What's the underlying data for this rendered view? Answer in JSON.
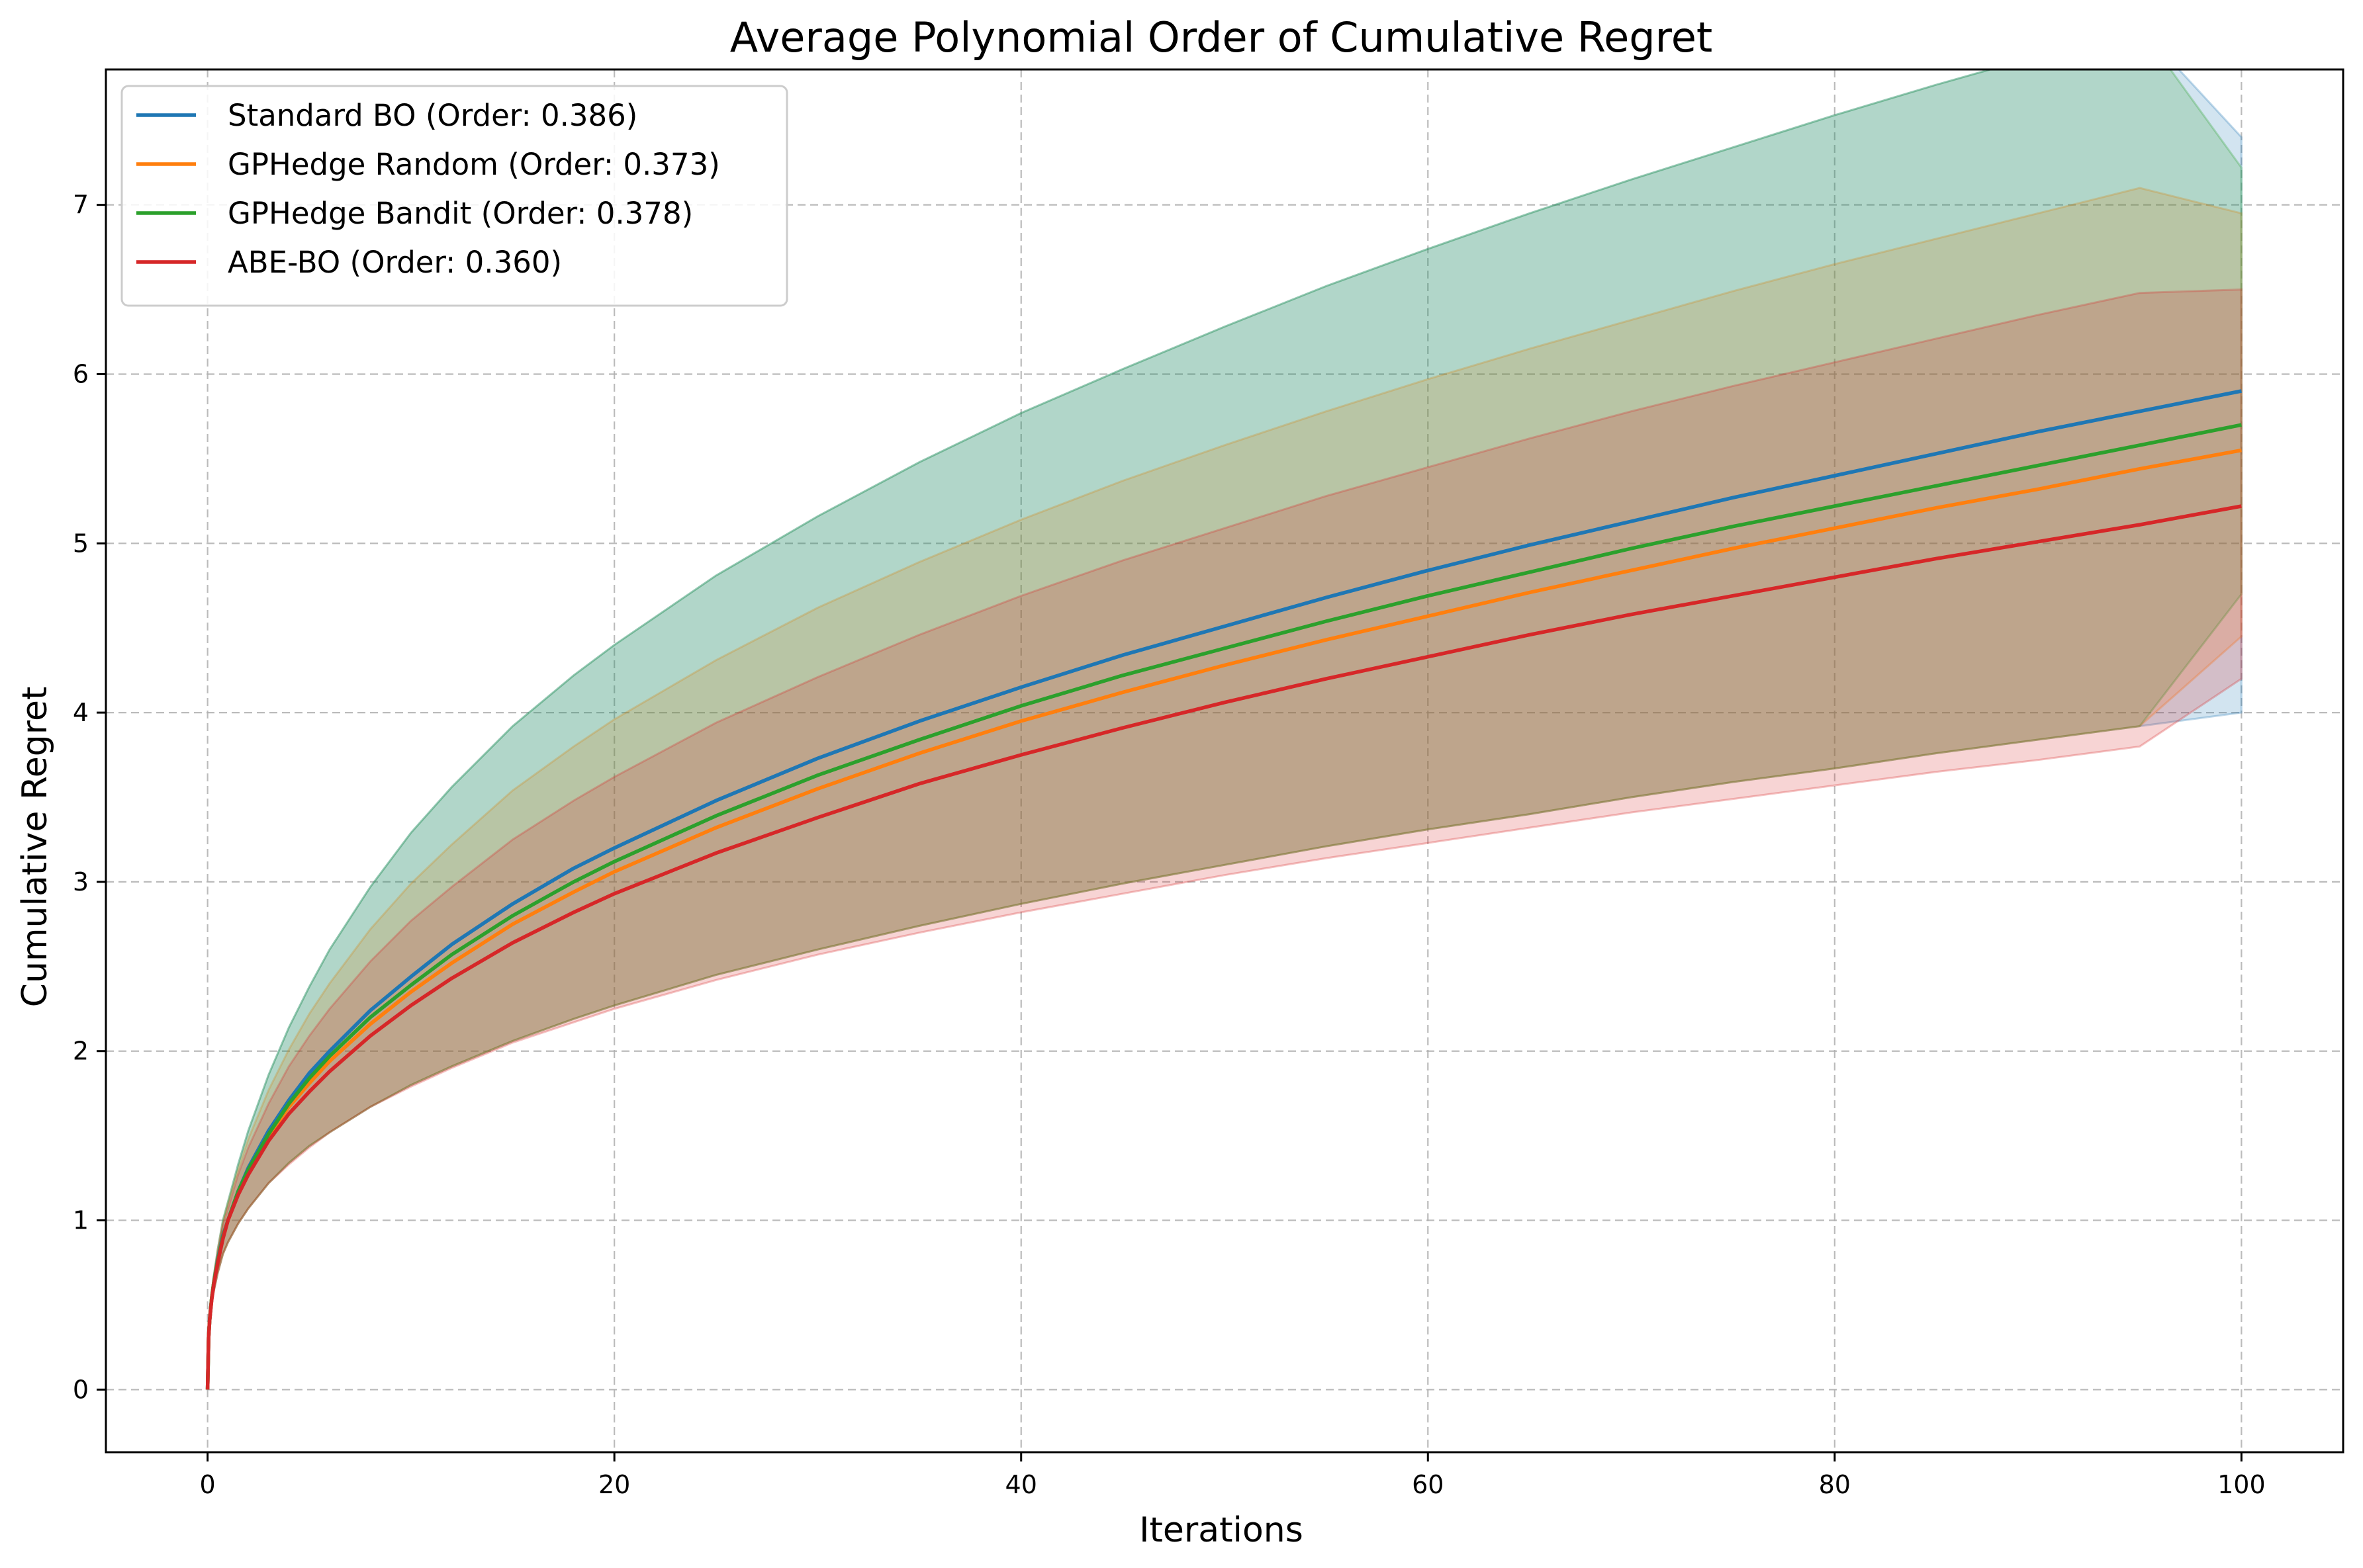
{
  "chart_data": {
    "type": "line",
    "title": "Average Polynomial Order of Cumulative Regret",
    "xlabel": "Iterations",
    "ylabel": "Cumulative Regret",
    "xlim": [
      -5,
      105
    ],
    "ylim": [
      -0.37,
      7.8
    ],
    "xticks": [
      0,
      20,
      40,
      60,
      80,
      100
    ],
    "yticks": [
      0,
      1,
      2,
      3,
      4,
      5,
      6,
      7
    ],
    "grid": true,
    "legend_position": "upper-left",
    "x": [
      0,
      0.05,
      0.1,
      0.2,
      0.3,
      0.5,
      0.75,
      1,
      1.5,
      2,
      3,
      4,
      5,
      6,
      8,
      10,
      12,
      15,
      18,
      20,
      25,
      30,
      35,
      40,
      45,
      50,
      55,
      60,
      65,
      70,
      75,
      80,
      85,
      90,
      95,
      100
    ],
    "series": [
      {
        "name": "Standard BO (Order: 0.386)",
        "color": "#1f77b4",
        "values": [
          0,
          0.31,
          0.41,
          0.54,
          0.63,
          0.77,
          0.91,
          1.0,
          1.17,
          1.31,
          1.53,
          1.71,
          1.87,
          2.0,
          2.24,
          2.44,
          2.63,
          2.87,
          3.08,
          3.2,
          3.48,
          3.73,
          3.95,
          4.15,
          4.34,
          4.51,
          4.68,
          4.84,
          4.99,
          5.13,
          5.27,
          5.4,
          5.53,
          5.66,
          5.78,
          5.9
        ],
        "band_lower": [
          0,
          0.3,
          0.39,
          0.51,
          0.58,
          0.69,
          0.8,
          0.87,
          0.98,
          1.07,
          1.22,
          1.34,
          1.44,
          1.52,
          1.67,
          1.8,
          1.91,
          2.06,
          2.19,
          2.27,
          2.45,
          2.6,
          2.74,
          2.87,
          2.99,
          3.1,
          3.21,
          3.31,
          3.4,
          3.5,
          3.59,
          3.67,
          3.76,
          3.84,
          3.92,
          4.0
        ],
        "band_upper": [
          0,
          0.32,
          0.43,
          0.57,
          0.67,
          0.83,
          1.0,
          1.11,
          1.33,
          1.53,
          1.86,
          2.14,
          2.38,
          2.6,
          2.97,
          3.29,
          3.56,
          3.92,
          4.22,
          4.4,
          4.81,
          5.16,
          5.48,
          5.77,
          6.03,
          6.28,
          6.52,
          6.74,
          6.95,
          7.15,
          7.34,
          7.53,
          7.71,
          7.88,
          8.05,
          7.4
        ]
      },
      {
        "name": "GPHedge Random (Order: 0.373)",
        "color": "#ff7f0e",
        "values": [
          0,
          0.31,
          0.41,
          0.54,
          0.63,
          0.76,
          0.9,
          1.0,
          1.16,
          1.29,
          1.5,
          1.67,
          1.81,
          1.94,
          2.16,
          2.35,
          2.52,
          2.75,
          2.94,
          3.06,
          3.32,
          3.55,
          3.76,
          3.95,
          4.12,
          4.28,
          4.43,
          4.57,
          4.71,
          4.84,
          4.97,
          5.09,
          5.21,
          5.32,
          5.44,
          5.55
        ],
        "band_lower": [
          0,
          0.3,
          0.39,
          0.51,
          0.58,
          0.69,
          0.8,
          0.87,
          0.98,
          1.07,
          1.22,
          1.34,
          1.44,
          1.52,
          1.67,
          1.8,
          1.91,
          2.06,
          2.19,
          2.27,
          2.45,
          2.6,
          2.74,
          2.87,
          2.99,
          3.1,
          3.21,
          3.31,
          3.4,
          3.5,
          3.59,
          3.67,
          3.76,
          3.84,
          3.92,
          4.45
        ],
        "band_upper": [
          0,
          0.32,
          0.43,
          0.57,
          0.67,
          0.83,
          0.99,
          1.1,
          1.3,
          1.48,
          1.77,
          2.01,
          2.22,
          2.4,
          2.72,
          2.99,
          3.22,
          3.54,
          3.8,
          3.96,
          4.31,
          4.62,
          4.89,
          5.14,
          5.37,
          5.58,
          5.78,
          5.97,
          6.15,
          6.32,
          6.49,
          6.65,
          6.8,
          6.95,
          7.1,
          6.95
        ]
      },
      {
        "name": "GPHedge Bandit (Order: 0.378)",
        "color": "#2ca02c",
        "values": [
          0,
          0.31,
          0.41,
          0.54,
          0.63,
          0.76,
          0.9,
          1.0,
          1.17,
          1.3,
          1.51,
          1.69,
          1.84,
          1.97,
          2.2,
          2.39,
          2.57,
          2.8,
          3.0,
          3.12,
          3.39,
          3.63,
          3.84,
          4.04,
          4.22,
          4.38,
          4.54,
          4.69,
          4.83,
          4.97,
          5.1,
          5.22,
          5.34,
          5.46,
          5.58,
          5.7
        ],
        "band_lower": [
          0,
          0.3,
          0.39,
          0.51,
          0.58,
          0.69,
          0.8,
          0.87,
          0.98,
          1.07,
          1.22,
          1.34,
          1.44,
          1.52,
          1.67,
          1.8,
          1.91,
          2.06,
          2.19,
          2.27,
          2.45,
          2.6,
          2.74,
          2.87,
          2.99,
          3.1,
          3.21,
          3.31,
          3.4,
          3.5,
          3.59,
          3.67,
          3.76,
          3.84,
          3.92,
          4.7
        ],
        "band_upper": [
          0,
          0.32,
          0.43,
          0.57,
          0.67,
          0.83,
          1.0,
          1.11,
          1.33,
          1.53,
          1.86,
          2.14,
          2.38,
          2.6,
          2.97,
          3.29,
          3.56,
          3.92,
          4.22,
          4.4,
          4.81,
          5.16,
          5.48,
          5.77,
          6.03,
          6.28,
          6.52,
          6.74,
          6.95,
          7.15,
          7.34,
          7.53,
          7.71,
          7.88,
          8.05,
          7.22
        ]
      },
      {
        "name": "ABE-BO (Order: 0.360)",
        "color": "#d62728",
        "values": [
          0,
          0.31,
          0.41,
          0.53,
          0.62,
          0.75,
          0.89,
          1.0,
          1.15,
          1.27,
          1.47,
          1.63,
          1.76,
          1.88,
          2.09,
          2.27,
          2.43,
          2.64,
          2.82,
          2.93,
          3.17,
          3.38,
          3.58,
          3.75,
          3.91,
          4.06,
          4.2,
          4.33,
          4.46,
          4.58,
          4.69,
          4.8,
          4.91,
          5.01,
          5.11,
          5.22
        ],
        "band_lower": [
          0,
          0.3,
          0.39,
          0.5,
          0.58,
          0.69,
          0.8,
          0.87,
          0.98,
          1.07,
          1.22,
          1.33,
          1.43,
          1.52,
          1.67,
          1.79,
          1.9,
          2.05,
          2.17,
          2.25,
          2.42,
          2.57,
          2.7,
          2.82,
          2.93,
          3.04,
          3.14,
          3.23,
          3.32,
          3.41,
          3.49,
          3.57,
          3.65,
          3.72,
          3.8,
          4.2
        ],
        "band_upper": [
          0,
          0.32,
          0.43,
          0.56,
          0.66,
          0.81,
          0.97,
          1.07,
          1.27,
          1.43,
          1.69,
          1.91,
          2.09,
          2.25,
          2.53,
          2.77,
          2.97,
          3.25,
          3.48,
          3.62,
          3.94,
          4.21,
          4.46,
          4.69,
          4.9,
          5.09,
          5.28,
          5.45,
          5.62,
          5.78,
          5.93,
          6.07,
          6.21,
          6.35,
          6.48,
          6.5
        ]
      }
    ]
  }
}
